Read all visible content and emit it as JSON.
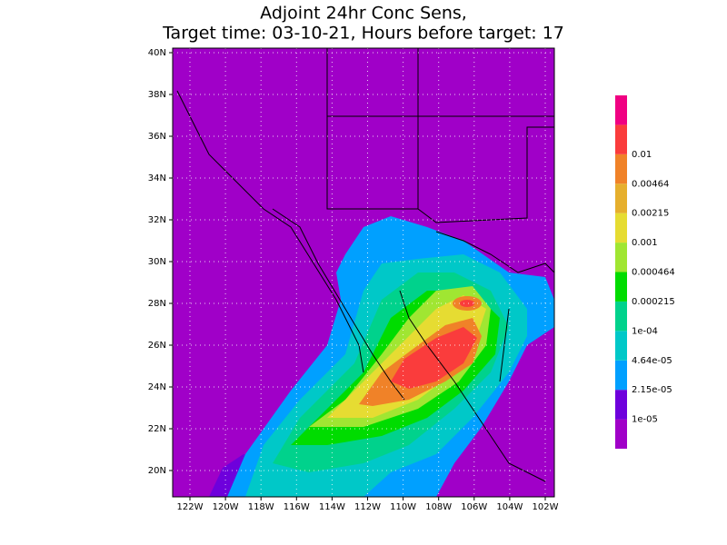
{
  "title": [
    "Adjoint 24hr Conc Sens,",
    "Target time: 03-10-21, Hours before target: 17"
  ],
  "map": {
    "lon_labels": [
      "122W",
      "120W",
      "118W",
      "116W",
      "114W",
      "112W",
      "110W",
      "108W",
      "106W",
      "104W",
      "102W"
    ],
    "lat_labels": [
      "40N",
      "38N",
      "36N",
      "34N",
      "32N",
      "30N",
      "28N",
      "26N",
      "24N",
      "22N",
      "20N"
    ]
  },
  "colorbar": {
    "colors": [
      "#a000c8",
      "#6e00dc",
      "#00a0ff",
      "#00c8c8",
      "#00d28c",
      "#00dc00",
      "#a0e632",
      "#e6dc32",
      "#e6af2d",
      "#f08228",
      "#fa3c3c",
      "#f00082"
    ],
    "labels": [
      "1e-05",
      "2.15e-05",
      "4.64e-05",
      "1e-04",
      "0.000215",
      "0.000464",
      "0.001",
      "0.00215",
      "0.00464",
      "0.01"
    ]
  }
}
